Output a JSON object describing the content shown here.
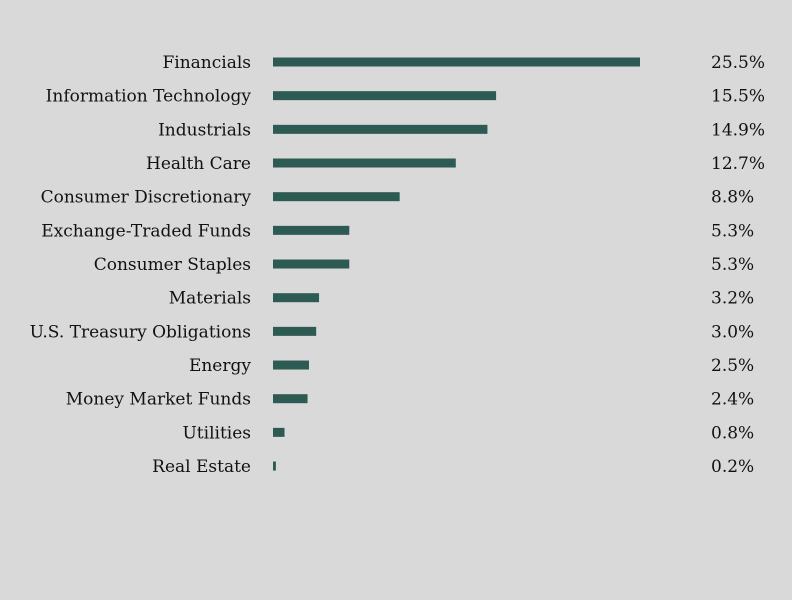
{
  "chart_data": {
    "type": "bar",
    "orientation": "horizontal",
    "categories": [
      "Financials",
      "Information Technology",
      "Industrials",
      "Health Care",
      "Consumer Discretionary",
      "Exchange-Traded Funds",
      "Consumer Staples",
      "Materials",
      "U.S. Treasury Obligations",
      "Energy",
      "Money Market Funds",
      "Utilities",
      "Real Estate"
    ],
    "values": [
      25.5,
      15.5,
      14.9,
      12.7,
      8.8,
      5.3,
      5.3,
      3.2,
      3.0,
      2.5,
      2.4,
      0.8,
      0.2
    ],
    "value_labels": [
      "25.5%",
      "15.5%",
      "14.9%",
      "12.7%",
      "8.8%",
      "5.3%",
      "5.3%",
      "3.2%",
      "3.0%",
      "2.5%",
      "2.4%",
      "0.8%",
      "0.2%"
    ],
    "title": "",
    "xlabel": "",
    "ylabel": "",
    "xlim": [
      0,
      25.5
    ],
    "grid": false,
    "legend": "none",
    "bar_color": "#2d5a52"
  }
}
